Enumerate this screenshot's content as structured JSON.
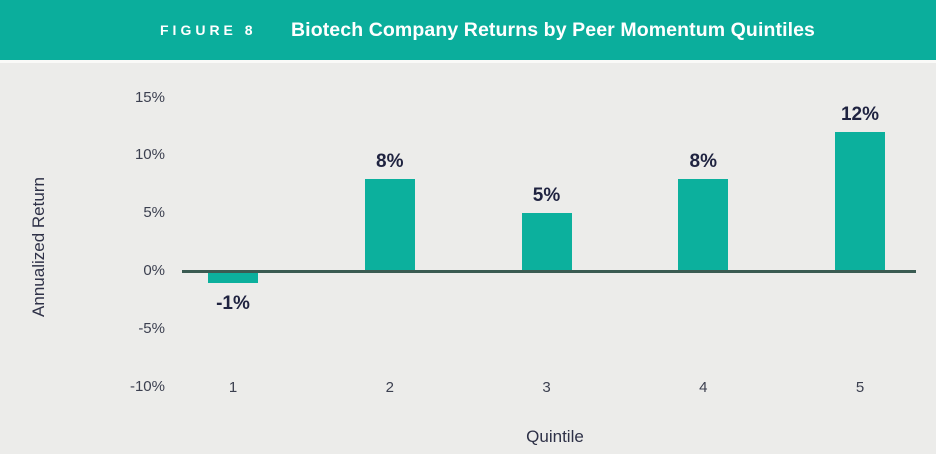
{
  "header": {
    "figure_label": "FIGURE 8",
    "title": "Biotech Company Returns by Peer Momentum Quintiles"
  },
  "chart_data": {
    "type": "bar",
    "title": "Biotech Company Returns by Peer Momentum Quintiles",
    "categories": [
      "1",
      "2",
      "3",
      "4",
      "5"
    ],
    "values": [
      -1,
      8,
      5,
      8,
      12
    ],
    "bar_labels": [
      "-1%",
      "8%",
      "5%",
      "8%",
      "12%"
    ],
    "xlabel": "Quintile",
    "ylabel": "Annualized Return",
    "ytick_labels": [
      "15%",
      "10%",
      "5%",
      "0%",
      "-5%",
      "-10%"
    ],
    "ylim": [
      -10,
      15
    ],
    "grid": false,
    "legend_position": "none"
  },
  "colors": {
    "header_bg": "#0BAE9C",
    "header_text": "#FFFFFF",
    "chart_bg": "#ECECEA",
    "bar_fill": "#0CB09D",
    "axis_line": "#3A5B52",
    "tick_text": "#3C4050",
    "value_label_text": "#1F2340",
    "axis_title_text": "#2E3147"
  }
}
